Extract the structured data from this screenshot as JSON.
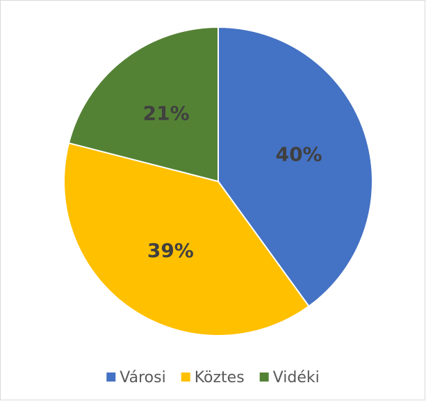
{
  "chart_data": {
    "type": "pie",
    "categories": [
      "Városi",
      "Köztes",
      "Vidéki"
    ],
    "values": [
      40,
      39,
      21
    ],
    "value_labels": [
      "40%",
      "39%",
      "21%"
    ],
    "colors": [
      "#4472c4",
      "#ffc000",
      "#548235"
    ],
    "legend": "bottom"
  }
}
